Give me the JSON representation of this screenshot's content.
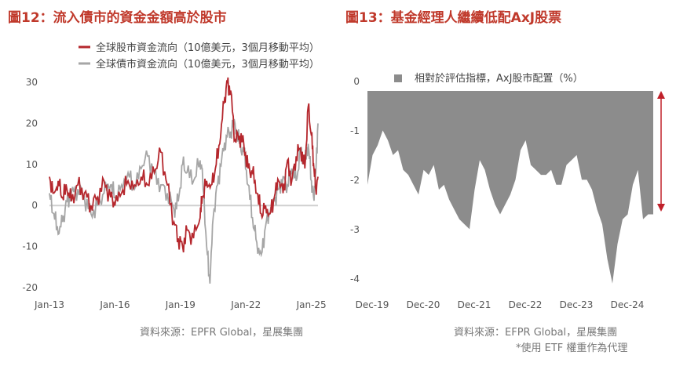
{
  "left": {
    "title": "圖12：流入債市的資金金額高於股市",
    "source": "資料來源：EPFR Global，星展集團",
    "legend": [
      "全球股市資金流向（10億美元，3個月移動平均）",
      "全球債市資金流向（10億美元，3個月移動平均）"
    ]
  },
  "right": {
    "title": "圖13：基金經理人繼續低配AxJ股票",
    "source": "資料來源：EFPR Global，星展集團",
    "note": "*使用 ETF 權重作為代理",
    "legend": "相對於評估指標，AxJ股市配置（%）"
  },
  "colors": {
    "equity": "#b5272d",
    "bond": "#a6a6a6",
    "area": "#8c8c8c",
    "arrow": "#c0202a",
    "title": "#c0392b"
  },
  "chart_data": [
    {
      "type": "line",
      "xticks": [
        "Jan-13",
        "Jan-16",
        "Jan-19",
        "Jan-22",
        "Jan-25"
      ],
      "yticks": [
        "30",
        "20",
        "10",
        "0",
        "-10",
        "-20"
      ],
      "ylim": [
        -20,
        30
      ],
      "series": [
        {
          "name": "全球股市資金流向（10億美元，3個月移動平均）",
          "x": [
            2013.0,
            2013.2,
            2013.4,
            2013.6,
            2013.8,
            2014.0,
            2014.3,
            2014.6,
            2014.9,
            2015.2,
            2015.5,
            2015.8,
            2016.0,
            2016.3,
            2016.6,
            2016.9,
            2017.2,
            2017.5,
            2017.8,
            2018.1,
            2018.4,
            2018.7,
            2018.9,
            2019.1,
            2019.3,
            2019.6,
            2019.9,
            2020.0,
            2020.2,
            2020.4,
            2020.6,
            2020.8,
            2021.0,
            2021.15,
            2021.3,
            2021.5,
            2021.7,
            2021.9,
            2022.1,
            2022.3,
            2022.5,
            2022.7,
            2022.9,
            2023.1,
            2023.3,
            2023.5,
            2023.7,
            2023.9,
            2024.1,
            2024.3,
            2024.5,
            2024.7,
            2024.85,
            2025.0,
            2025.1,
            2025.2,
            2025.3
          ],
          "y": [
            7,
            3,
            6,
            2,
            4,
            1,
            5,
            3,
            0,
            2,
            6,
            2,
            0,
            3,
            6,
            5,
            7,
            5,
            8,
            13,
            5,
            -4,
            -8,
            -10,
            -6,
            -8,
            -3,
            2,
            6,
            5,
            9,
            15,
            25,
            30,
            28,
            16,
            17,
            15,
            9,
            8,
            3,
            -2,
            0,
            -2,
            2,
            6,
            3,
            11,
            6,
            12,
            14,
            9,
            24,
            17,
            10,
            4,
            7
          ]
        },
        {
          "name": "全球債市資金流向（10億美元，3個月移動平均）",
          "x": [
            2013.0,
            2013.2,
            2013.4,
            2013.6,
            2013.8,
            2014.0,
            2014.3,
            2014.6,
            2014.9,
            2015.2,
            2015.5,
            2015.8,
            2016.0,
            2016.3,
            2016.6,
            2016.9,
            2017.2,
            2017.5,
            2017.8,
            2018.1,
            2018.4,
            2018.7,
            2018.9,
            2019.1,
            2019.3,
            2019.6,
            2019.9,
            2020.0,
            2020.2,
            2020.35,
            2020.5,
            2020.7,
            2020.9,
            2021.1,
            2021.3,
            2021.5,
            2021.7,
            2021.9,
            2022.1,
            2022.3,
            2022.5,
            2022.7,
            2022.9,
            2023.1,
            2023.3,
            2023.5,
            2023.7,
            2023.9,
            2024.1,
            2024.3,
            2024.5,
            2024.7,
            2024.85,
            2025.0,
            2025.1,
            2025.2,
            2025.3
          ],
          "y": [
            3,
            -2,
            -7,
            -4,
            1,
            3,
            4,
            2,
            -2,
            0,
            3,
            5,
            2,
            5,
            8,
            4,
            9,
            12,
            8,
            5,
            3,
            -1,
            1,
            10,
            8,
            6,
            11,
            9,
            -10,
            -19,
            -3,
            5,
            12,
            17,
            18,
            20,
            15,
            13,
            5,
            -3,
            -9,
            -12,
            -5,
            -2,
            1,
            4,
            7,
            5,
            9,
            6,
            13,
            10,
            15,
            6,
            2,
            8,
            20
          ]
        }
      ]
    },
    {
      "type": "area",
      "xticks": [
        "Dec-19",
        "Dec-20",
        "Dec-21",
        "Dec-22",
        "Dec-23",
        "Dec-24"
      ],
      "yticks": [
        "0",
        "-1",
        "-2",
        "-3",
        "-4"
      ],
      "ylim": [
        -4,
        0
      ],
      "series": [
        {
          "name": "相對於評估指標，AxJ股市配置（%）",
          "x": [
            2019.95,
            2020.05,
            2020.15,
            2020.25,
            2020.35,
            2020.45,
            2020.55,
            2020.65,
            2020.75,
            2020.85,
            2020.95,
            2021.05,
            2021.15,
            2021.25,
            2021.35,
            2021.45,
            2021.55,
            2021.65,
            2021.75,
            2021.85,
            2021.95,
            2022.05,
            2022.15,
            2022.25,
            2022.35,
            2022.45,
            2022.55,
            2022.65,
            2022.75,
            2022.85,
            2022.95,
            2023.05,
            2023.15,
            2023.25,
            2023.35,
            2023.45,
            2023.55,
            2023.65,
            2023.75,
            2023.85,
            2023.95,
            2024.05,
            2024.15,
            2024.25,
            2024.35,
            2024.45,
            2024.55,
            2024.65,
            2024.75,
            2024.85,
            2024.95,
            2025.05,
            2025.15,
            2025.25,
            2025.35,
            2025.45,
            2025.55
          ],
          "y": [
            -1.9,
            -1.3,
            -1.1,
            -0.8,
            -1.0,
            -1.3,
            -1.2,
            -1.6,
            -1.7,
            -1.9,
            -2.1,
            -1.6,
            -1.7,
            -1.5,
            -2.0,
            -1.9,
            -2.2,
            -2.4,
            -2.6,
            -2.7,
            -2.8,
            -2.0,
            -1.4,
            -1.6,
            -2.0,
            -2.3,
            -2.5,
            -2.3,
            -2.1,
            -1.8,
            -1.2,
            -1.0,
            -1.5,
            -1.6,
            -1.7,
            -1.7,
            -1.6,
            -1.9,
            -1.9,
            -1.5,
            -1.4,
            -1.3,
            -1.8,
            -1.8,
            -2.0,
            -2.4,
            -2.7,
            -3.4,
            -3.9,
            -3.1,
            -2.6,
            -2.5,
            -1.9,
            -1.6,
            -2.6,
            -2.5,
            -2.5
          ]
        }
      ]
    }
  ]
}
